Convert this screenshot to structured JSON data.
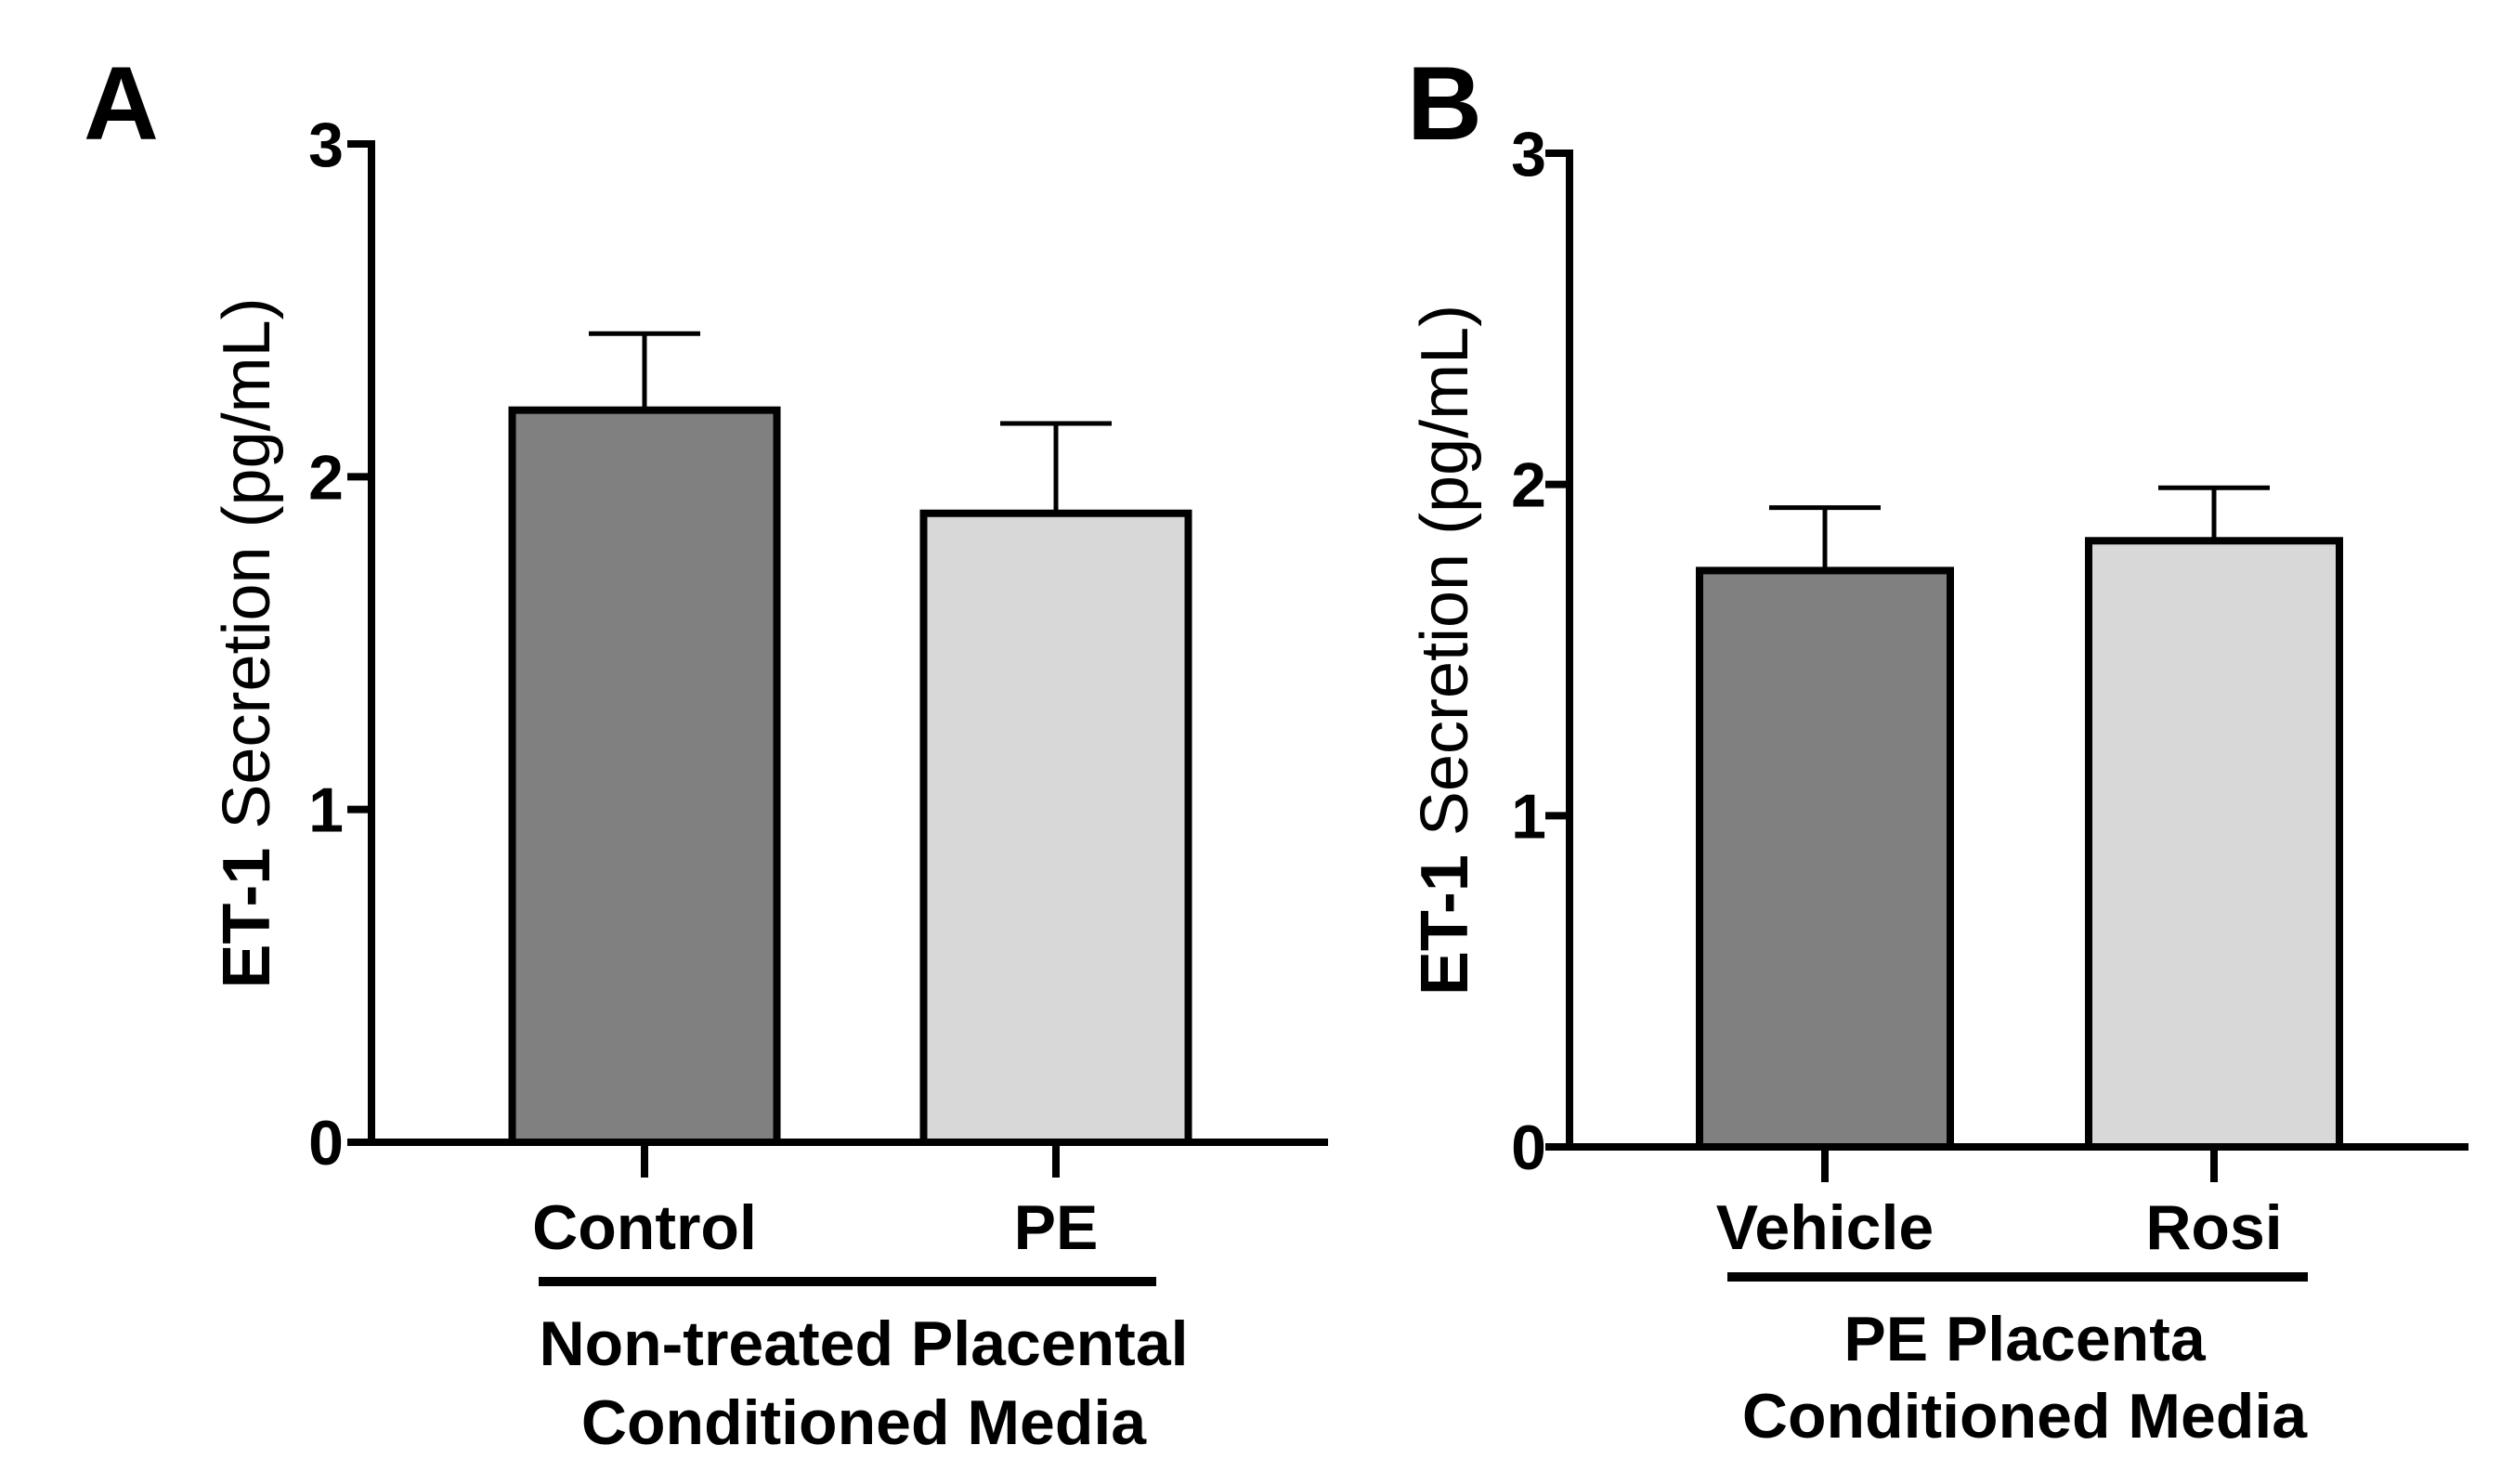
{
  "chart_data": [
    {
      "type": "bar",
      "panel_letter": "A",
      "ylabel": "ET-1 Secretion (pg/mL)",
      "ylabel_bold_part": "ET-1",
      "ylabel_rest": " Secretion (pg/mL)",
      "ylim": [
        0,
        3
      ],
      "yticks": [
        "0",
        "1",
        "2",
        "3"
      ],
      "categories": [
        "Control",
        "PE"
      ],
      "values": [
        2.2,
        1.89
      ],
      "errors": [
        0.23,
        0.27
      ],
      "colors": [
        "#808080",
        "#d8d8d8"
      ],
      "group_label_lines": [
        "Non-treated Placental",
        "Conditioned Media"
      ]
    },
    {
      "type": "bar",
      "panel_letter": "B",
      "ylabel": "ET-1 Secretion (pg/mL)",
      "ylabel_bold_part": "ET-1",
      "ylabel_rest": " Secretion (pg/mL)",
      "ylim": [
        0,
        3
      ],
      "yticks": [
        "0",
        "1",
        "2",
        "3"
      ],
      "categories": [
        "Vehicle",
        "Rosi"
      ],
      "values": [
        1.74,
        1.83
      ],
      "errors": [
        0.19,
        0.16
      ],
      "colors": [
        "#808080",
        "#d8d8d8"
      ],
      "group_label_lines": [
        "PE Placenta",
        "Conditioned Media"
      ]
    }
  ]
}
